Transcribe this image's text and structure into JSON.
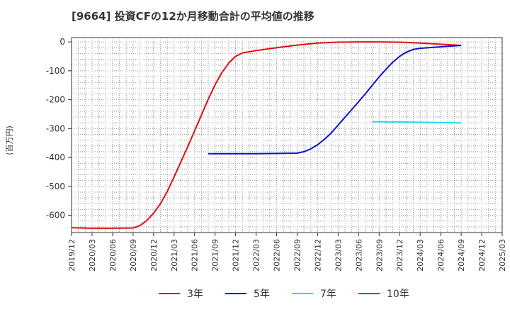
{
  "chart_data": {
    "type": "line",
    "title": "[9664]  投資CFの12か月移動合計の平均値の推移",
    "ylabel": "(百万円)",
    "xlabel": "",
    "ylim": [
      -660,
      15
    ],
    "yticks": [
      0,
      -100,
      -200,
      -300,
      -400,
      -500,
      -600
    ],
    "x_range": [
      "2019-12",
      "2025-03"
    ],
    "x_tick_labels": [
      "2019/12",
      "2020/03",
      "2020/06",
      "2020/09",
      "2020/12",
      "2021/03",
      "2021/06",
      "2021/09",
      "2021/12",
      "2022/03",
      "2022/06",
      "2022/09",
      "2022/12",
      "2023/03",
      "2023/06",
      "2023/09",
      "2023/12",
      "2024/03",
      "2024/06",
      "2024/09",
      "2024/12",
      "2025/03"
    ],
    "grid": true,
    "legend_position": "bottom",
    "series": [
      {
        "name": "3年",
        "color": "#dd1111",
        "points": [
          [
            "2019-12",
            -643
          ],
          [
            "2020-03",
            -645
          ],
          [
            "2020-06",
            -645
          ],
          [
            "2020-09",
            -644
          ],
          [
            "2020-10",
            -636
          ],
          [
            "2020-11",
            -618
          ],
          [
            "2020-12",
            -593
          ],
          [
            "2021-01",
            -560
          ],
          [
            "2021-02",
            -518
          ],
          [
            "2021-03",
            -467
          ],
          [
            "2021-04",
            -415
          ],
          [
            "2021-05",
            -362
          ],
          [
            "2021-06",
            -308
          ],
          [
            "2021-07",
            -253
          ],
          [
            "2021-08",
            -198
          ],
          [
            "2021-09",
            -148
          ],
          [
            "2021-10",
            -106
          ],
          [
            "2021-11",
            -73
          ],
          [
            "2021-12",
            -50
          ],
          [
            "2022-01",
            -38
          ],
          [
            "2022-03",
            -30
          ],
          [
            "2022-06",
            -20
          ],
          [
            "2022-09",
            -11
          ],
          [
            "2022-12",
            -4
          ],
          [
            "2023-03",
            -1
          ],
          [
            "2023-06",
            0
          ],
          [
            "2023-09",
            0
          ],
          [
            "2023-12",
            -1
          ],
          [
            "2024-03",
            -4
          ],
          [
            "2024-06",
            -8
          ],
          [
            "2024-09",
            -12
          ]
        ]
      },
      {
        "name": "5年",
        "color": "#1111cc",
        "points": [
          [
            "2021-08",
            -387
          ],
          [
            "2022-03",
            -387
          ],
          [
            "2022-06",
            -386
          ],
          [
            "2022-09",
            -385
          ],
          [
            "2022-10",
            -380
          ],
          [
            "2022-11",
            -370
          ],
          [
            "2022-12",
            -356
          ],
          [
            "2023-01",
            -337
          ],
          [
            "2023-02",
            -315
          ],
          [
            "2023-03",
            -288
          ],
          [
            "2023-04",
            -261
          ],
          [
            "2023-05",
            -234
          ],
          [
            "2023-06",
            -207
          ],
          [
            "2023-07",
            -179
          ],
          [
            "2023-08",
            -150
          ],
          [
            "2023-09",
            -121
          ],
          [
            "2023-10",
            -95
          ],
          [
            "2023-11",
            -70
          ],
          [
            "2023-12",
            -50
          ],
          [
            "2024-01",
            -35
          ],
          [
            "2024-02",
            -26
          ],
          [
            "2024-03",
            -22
          ],
          [
            "2024-06",
            -17
          ],
          [
            "2024-09",
            -12
          ]
        ]
      },
      {
        "name": "7年",
        "color": "#22ddee",
        "points": [
          [
            "2023-08",
            -276
          ],
          [
            "2024-03",
            -278
          ],
          [
            "2024-09",
            -280
          ]
        ]
      },
      {
        "name": "10年",
        "color": "#228822",
        "points": []
      }
    ]
  }
}
